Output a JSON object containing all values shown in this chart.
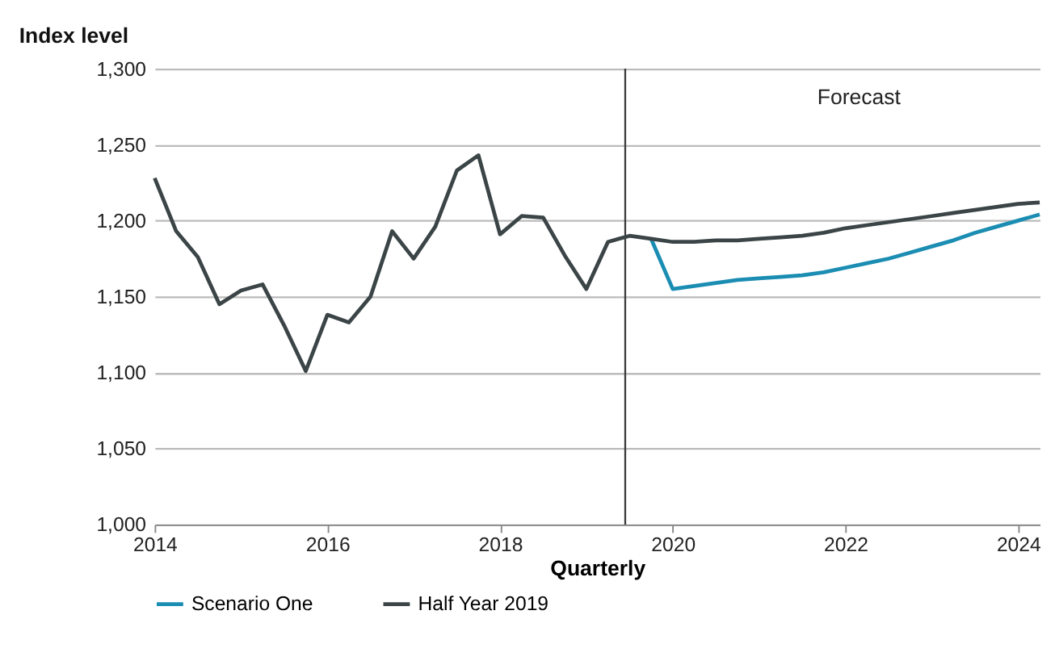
{
  "chart_data": {
    "type": "line",
    "ylabel": "Index level",
    "xlabel": "Quarterly",
    "xlim": [
      2014,
      2024.25
    ],
    "xticks": [
      2014,
      2016,
      2018,
      2020,
      2022,
      2024
    ],
    "ylim": [
      1000,
      1300
    ],
    "yticks": [
      {
        "value": 1000,
        "label": "1,000"
      },
      {
        "value": 1050,
        "label": "1,050"
      },
      {
        "value": 1100,
        "label": "1,100"
      },
      {
        "value": 1150,
        "label": "1,150"
      },
      {
        "value": 1200,
        "label": "1,200"
      },
      {
        "value": 1250,
        "label": "1,250"
      },
      {
        "value": 1300,
        "label": "1,300"
      }
    ],
    "grid": "y",
    "legend": "bottom",
    "marker": "none",
    "line_style": "solid",
    "ref_lines": [
      {
        "axis": "x",
        "value": 2019.45,
        "color": "#3a3a3a"
      }
    ],
    "annotations": [
      "Forecast"
    ],
    "series": [
      {
        "name": "Scenario One",
        "color": "#1b8db3",
        "x": [
          2019.75,
          2020,
          2020.25,
          2020.5,
          2020.75,
          2021,
          2021.25,
          2021.5,
          2021.75,
          2022,
          2022.25,
          2022.5,
          2022.75,
          2023,
          2023.25,
          2023.5,
          2023.75,
          2024,
          2024.25
        ],
        "values": [
          1188,
          1155,
          1157,
          1159,
          1161,
          1162,
          1163,
          1164,
          1166,
          1169,
          1172,
          1175,
          1179,
          1183,
          1187,
          1192,
          1196,
          1200,
          1204
        ]
      },
      {
        "name": "Half Year 2019",
        "color": "#3b4446",
        "x": [
          2014,
          2014.25,
          2014.5,
          2014.75,
          2015,
          2015.25,
          2015.5,
          2015.75,
          2016,
          2016.25,
          2016.5,
          2016.75,
          2017,
          2017.25,
          2017.5,
          2017.75,
          2018,
          2018.25,
          2018.5,
          2018.75,
          2019,
          2019.25,
          2019.5,
          2019.75,
          2020,
          2020.25,
          2020.5,
          2020.75,
          2021,
          2021.25,
          2021.5,
          2021.75,
          2022,
          2022.25,
          2022.5,
          2022.75,
          2023,
          2023.25,
          2023.5,
          2023.75,
          2024,
          2024.25
        ],
        "values": [
          1228,
          1193,
          1176,
          1145,
          1154,
          1158,
          1131,
          1101,
          1138,
          1133,
          1150,
          1193,
          1175,
          1196,
          1233,
          1243,
          1191,
          1203,
          1202,
          1177,
          1155,
          1186,
          1190,
          1188,
          1186,
          1186,
          1187,
          1187,
          1188,
          1189,
          1190,
          1192,
          1195,
          1197,
          1199,
          1201,
          1203,
          1205,
          1207,
          1209,
          1211,
          1212
        ]
      }
    ]
  }
}
